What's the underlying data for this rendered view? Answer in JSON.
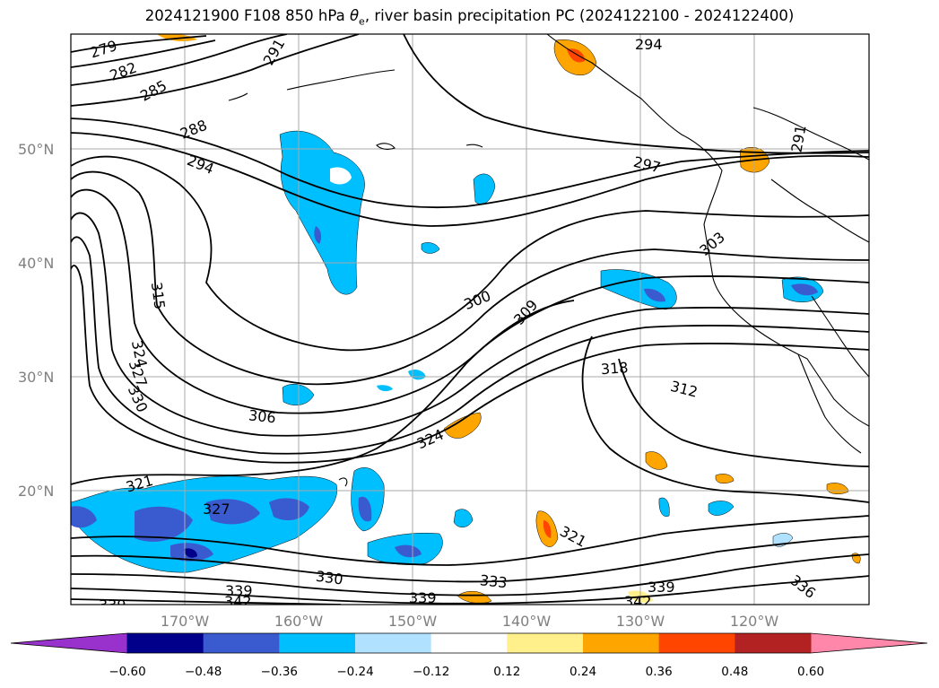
{
  "title": {
    "prefix": "2024121900 F108 850 hPa ",
    "theta": "θ",
    "theta_sub": "e",
    "suffix": ", river basin precipitation PC (2024122100 - 2024122400)"
  },
  "map": {
    "lat_labels": [
      "20°N",
      "30°N",
      "40°N",
      "50°N"
    ],
    "lon_labels": [
      "170°W",
      "160°W",
      "150°W",
      "140°W",
      "130°W",
      "120°W"
    ],
    "contour_labels": [
      "279",
      "282",
      "285",
      "288",
      "291",
      "294",
      "294",
      "297",
      "291",
      "303",
      "300",
      "309",
      "315",
      "324",
      "327",
      "330",
      "306",
      "324",
      "318",
      "312",
      "321",
      "327",
      "321",
      "330",
      "333",
      "339",
      "339",
      "342",
      "339",
      "342",
      "336"
    ]
  },
  "colorbar": {
    "ticks": [
      "−0.60",
      "−0.48",
      "−0.36",
      "−0.24",
      "−0.12",
      "0.12",
      "0.24",
      "0.36",
      "0.48",
      "0.60"
    ],
    "colors": [
      "#9932cc",
      "#00008b",
      "#3a5bd0",
      "#00bfff",
      "#b0e2ff",
      "#ffffff",
      "#fff08c",
      "#ffa500",
      "#ff4500",
      "#b22222",
      "#ff88aa"
    ]
  }
}
